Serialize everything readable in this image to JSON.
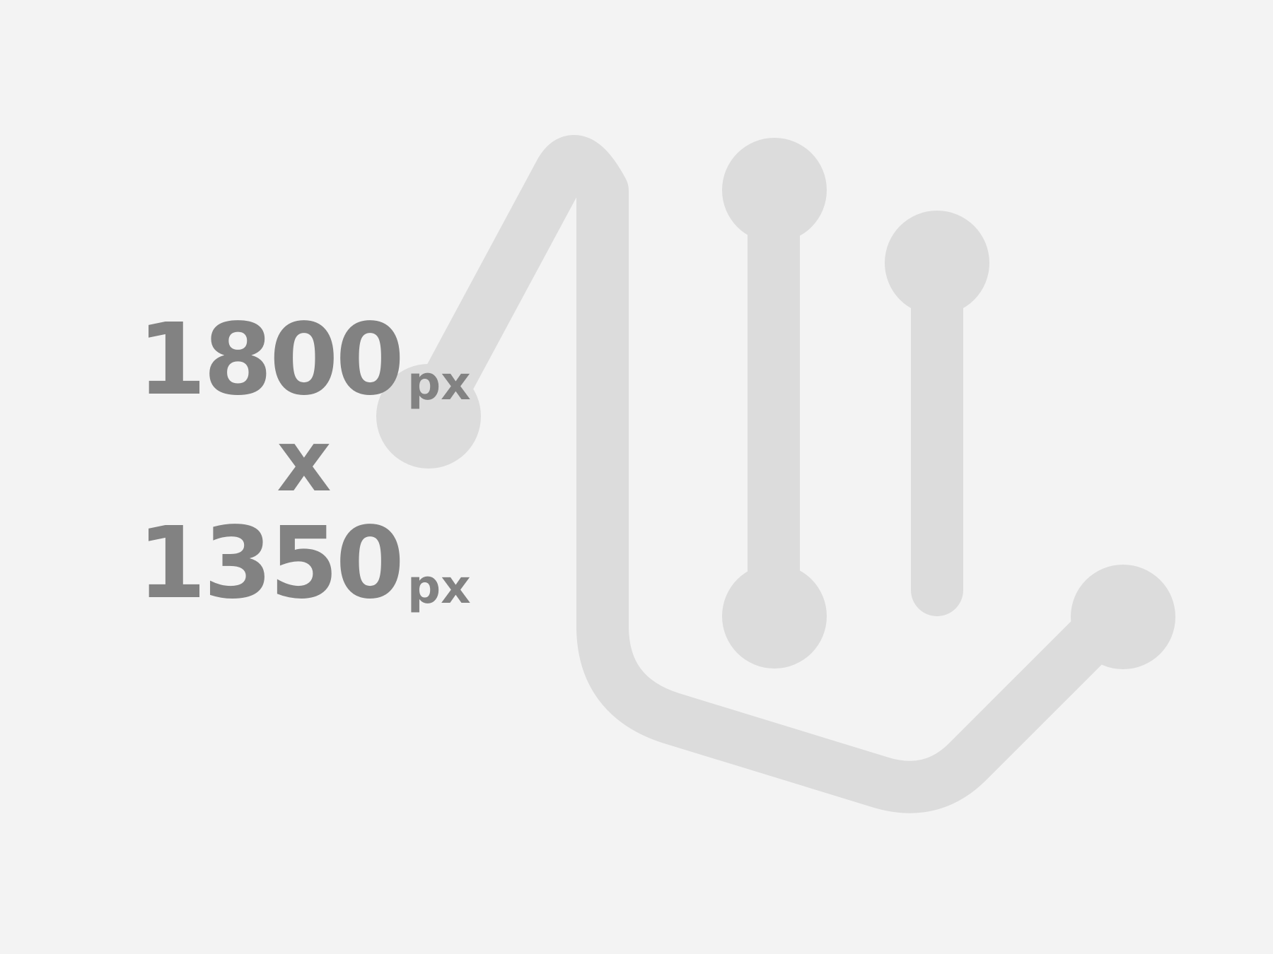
{
  "placeholder": {
    "width_value": "1800",
    "height_value": "1350",
    "unit": "px",
    "separator": "x",
    "colors": {
      "background": "#f3f3f3",
      "graphic": "#dcdcdc",
      "text": "#828282"
    },
    "icon": "image-placeholder-graph-icon"
  }
}
